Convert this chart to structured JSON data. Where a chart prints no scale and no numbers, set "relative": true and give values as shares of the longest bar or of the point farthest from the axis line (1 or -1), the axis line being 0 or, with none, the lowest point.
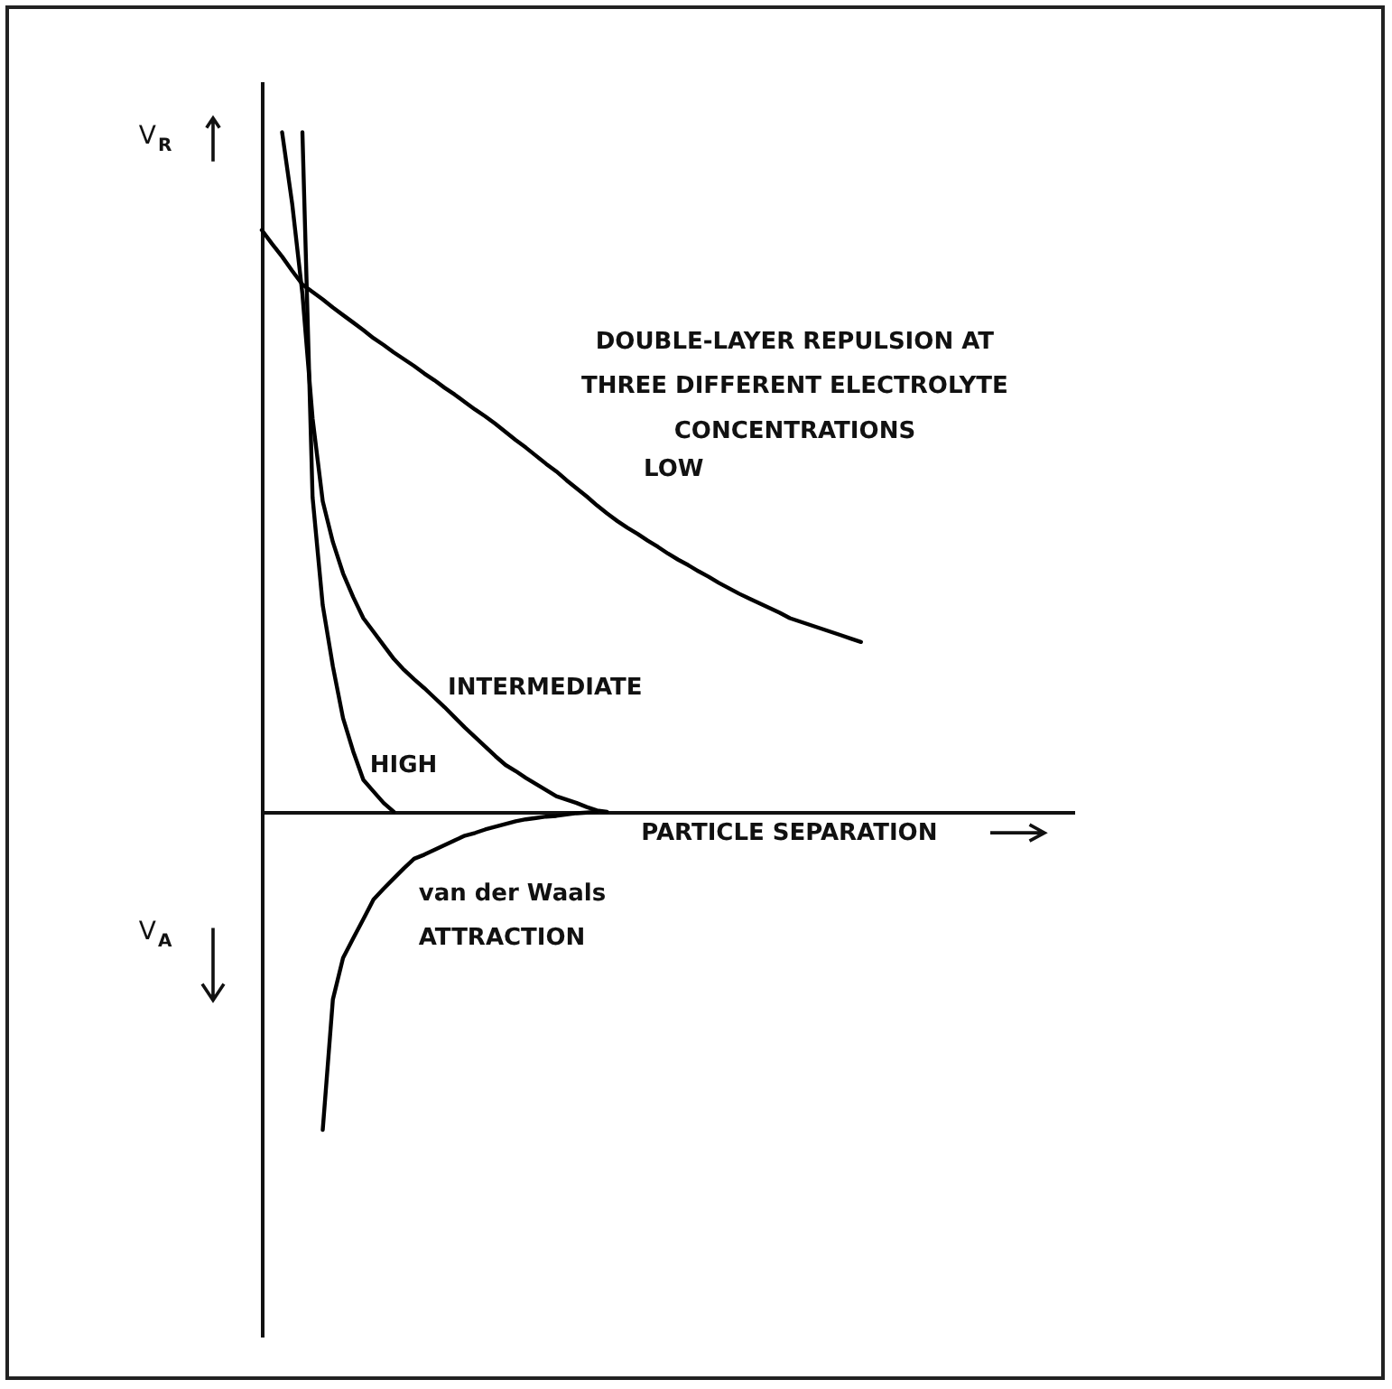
{
  "chart_data": {
    "type": "line",
    "title": "DOUBLE-LAYER REPULSION AT THREE DIFFERENT ELECTROLYTE CONCENTRATIONS",
    "xlabel": "PARTICLE SEPARATION",
    "ylabel": "V$_{R}$",
    "annotations": [
      "V$_{A}$"
    ],
    "relative": true,
    "legend": false,
    "marker": "none",
    "line_style": "solid",
    "categories": [
      null,
      null,
      null,
      null,
      null,
      null,
      null,
      null,
      null,
      null,
      null,
      null,
      null,
      null,
      null,
      null,
      null,
      null,
      null,
      null,
      null,
      null,
      null,
      null,
      null,
      null,
      null,
      null,
      null,
      null,
      null,
      null,
      null,
      null,
      null,
      null,
      null,
      null,
      null,
      null,
      null,
      null,
      null,
      null,
      null,
      null,
      null,
      null,
      null,
      null,
      null,
      null,
      null,
      null,
      null,
      null,
      null,
      null,
      null,
      null,
      null,
      null,
      null,
      null,
      null,
      null,
      null,
      null,
      null,
      null,
      null,
      null,
      null,
      null,
      null,
      null,
      null,
      null,
      null,
      null,
      null
    ],
    "series": [
      {
        "name": "LOW",
        "color": "#000000",
        "values": [
          0.856,
          0.836,
          0.817,
          0.796,
          0.776,
          0.765,
          0.754,
          0.742,
          0.731,
          0.72,
          0.709,
          0.697,
          0.687,
          0.676,
          0.666,
          0.656,
          0.645,
          0.635,
          0.624,
          0.614,
          0.603,
          0.592,
          0.582,
          0.571,
          0.559,
          0.547,
          0.536,
          0.524,
          0.512,
          0.501,
          0.488,
          0.476,
          0.464,
          0.451,
          0.439,
          0.428,
          0.418,
          0.409,
          0.399,
          0.39,
          0.38,
          0.371,
          0.363,
          0.354,
          0.346,
          0.337,
          0.329,
          0.321,
          0.314,
          0.307,
          0.3,
          0.293,
          0.285,
          0.28,
          0.275,
          0.27,
          0.265,
          0.26,
          0.255,
          0.25,
          null,
          null,
          null,
          null,
          null,
          null,
          null,
          null,
          null,
          null,
          null,
          null,
          null,
          null,
          null,
          null,
          null,
          null,
          null,
          null,
          null
        ]
      },
      {
        "name": "INTERMEDIATE",
        "color": "#000000",
        "values": [
          null,
          null,
          1.0,
          0.894,
          0.762,
          0.579,
          0.457,
          0.397,
          0.351,
          0.316,
          0.285,
          0.265,
          0.245,
          0.225,
          0.209,
          0.195,
          0.182,
          0.168,
          0.154,
          0.139,
          0.124,
          0.11,
          0.096,
          0.082,
          0.069,
          0.06,
          0.05,
          0.041,
          0.032,
          0.023,
          0.018,
          0.013,
          0.007,
          0.002,
          0,
          null,
          null,
          null,
          null,
          null,
          null,
          null,
          null,
          null,
          null,
          null,
          null,
          null,
          null,
          null,
          null,
          null,
          null,
          null,
          null,
          null,
          null,
          null,
          null,
          null,
          null,
          null,
          null,
          null,
          null,
          null,
          null,
          null,
          null,
          null,
          null,
          null,
          null,
          null,
          null,
          null,
          null,
          null,
          null,
          null,
          null
        ]
      },
      {
        "name": "HIGH",
        "color": "#000000",
        "values": [
          null,
          null,
          null,
          null,
          1.0,
          0.463,
          0.304,
          0.214,
          0.138,
          0.089,
          0.047,
          0.03,
          0.013,
          0,
          null,
          null,
          null,
          null,
          null,
          null,
          null,
          null,
          null,
          null,
          null,
          null,
          null,
          null,
          null,
          null,
          null,
          null,
          null,
          null,
          null,
          null,
          null,
          null,
          null,
          null,
          null,
          null,
          null,
          null,
          null,
          null,
          null,
          null,
          null,
          null,
          null,
          null,
          null,
          null,
          null,
          null,
          null,
          null,
          null,
          null,
          null,
          null,
          null,
          null,
          null,
          null,
          null,
          null,
          null,
          null,
          null,
          null,
          null,
          null,
          null,
          null,
          null,
          null,
          null,
          null,
          null
        ]
      },
      {
        "name": "van der Waals ATTRACTION",
        "color": "#000000",
        "values": [
          null,
          null,
          null,
          null,
          null,
          null,
          -0.468,
          -0.276,
          -0.215,
          -0.186,
          -0.158,
          -0.129,
          -0.113,
          -0.098,
          -0.083,
          -0.069,
          -0.063,
          -0.056,
          -0.049,
          -0.042,
          -0.035,
          -0.031,
          -0.026,
          -0.022,
          -0.018,
          -0.014,
          -0.011,
          -0.009,
          -0.007,
          -0.006,
          -0.004,
          -0.002,
          -0.001,
          0,
          null,
          null,
          null,
          null,
          null,
          null,
          null,
          null,
          null,
          null,
          null,
          null,
          null,
          null,
          null,
          null,
          null,
          null,
          null,
          null,
          null,
          null,
          null,
          null,
          null,
          null,
          null,
          null,
          null,
          null,
          null,
          null,
          null,
          null,
          null,
          null,
          null,
          null,
          null,
          null,
          null,
          null,
          null,
          null,
          null,
          null,
          null
        ]
      }
    ]
  }
}
